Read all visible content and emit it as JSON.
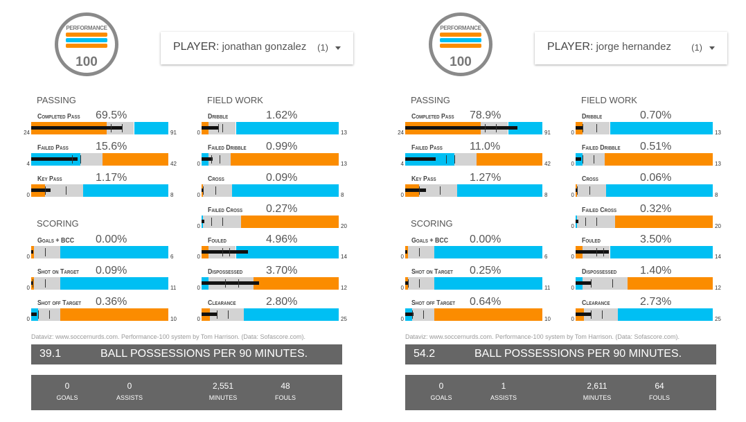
{
  "logo": {
    "top": "PERFORMANCE",
    "number": "100"
  },
  "colors": {
    "orange": "#fb8c00",
    "blue": "#00bff3",
    "gray": "#d3d3d3",
    "value": "#111111",
    "tick": "#333333"
  },
  "sections": {
    "passing": "PASSING",
    "field_work": "FIELD WORK",
    "scoring": "SCORING"
  },
  "players": [
    {
      "select": {
        "label": "PLAYER:",
        "name": "jonathan gonzalez",
        "count": "(1)"
      },
      "credit": "Dataviz: www.soccernurds.com. Performance-100 system by Tom Harrison. (Data: Sofascore.com).",
      "possessions": {
        "value": "39.1",
        "text": "BALL POSSESSIONS PER 90 MINUTES."
      },
      "totals": [
        {
          "value": "0",
          "label": "GOALS"
        },
        {
          "value": "0",
          "label": "ASSISTS"
        },
        {
          "value": "2,551",
          "label": "MINUTES"
        },
        {
          "value": "48",
          "label": "FOULS"
        }
      ],
      "metrics": [
        {
          "label": "Completed Pass",
          "pct": "69.5%",
          "min": "24",
          "max": "91",
          "bands": [
            {
              "c": "orange",
              "e": 0.55
            },
            {
              "c": "gray",
              "e": 0.75
            },
            {
              "c": "blue",
              "e": 1
            }
          ],
          "value": 0.66,
          "ticks": [
            0.58,
            0.66
          ]
        },
        {
          "label": "Failed Pass",
          "pct": "15.6%",
          "min": "4",
          "max": "42",
          "bands": [
            {
              "c": "blue",
              "e": 0.36
            },
            {
              "c": "gray",
              "e": 0.52
            },
            {
              "c": "orange",
              "e": 1
            }
          ],
          "value": 0.34,
          "ticks": [
            0.3,
            0.36
          ]
        },
        {
          "label": "Key Pass",
          "pct": "1.17%",
          "min": "0",
          "max": "8",
          "bands": [
            {
              "c": "orange",
              "e": 0.1
            },
            {
              "c": "gray",
              "e": 0.38
            },
            {
              "c": "blue",
              "e": 1
            }
          ],
          "value": 0.14,
          "ticks": [
            0.1,
            0.25
          ]
        },
        {
          "label": "Goals + BCC",
          "pct": "0.00%",
          "min": "0",
          "max": "6",
          "bands": [
            {
              "c": "orange",
              "e": 0.02
            },
            {
              "c": "gray",
              "e": 0.21
            },
            {
              "c": "blue",
              "e": 1
            }
          ],
          "value": 0.0,
          "ticks": [
            0.1
          ]
        },
        {
          "label": "Shot on Target",
          "pct": "0.09%",
          "min": "0",
          "max": "11",
          "bands": [
            {
              "c": "orange",
              "e": 0.02
            },
            {
              "c": "gray",
              "e": 0.21
            },
            {
              "c": "blue",
              "e": 1
            }
          ],
          "value": 0.01,
          "ticks": [
            0.01,
            0.1
          ]
        },
        {
          "label": "Shot off Target",
          "pct": "0.36%",
          "min": "0",
          "max": "10",
          "bands": [
            {
              "c": "blue",
              "e": 0.05
            },
            {
              "c": "gray",
              "e": 0.21
            },
            {
              "c": "orange",
              "e": 1
            }
          ],
          "value": 0.04,
          "ticks": [
            0.05,
            0.13
          ]
        },
        {
          "label": "Dribble",
          "pct": "1.62%",
          "min": "0",
          "max": "13",
          "bands": [
            {
              "c": "orange",
              "e": 0.05
            },
            {
              "c": "gray",
              "e": 0.25
            },
            {
              "c": "blue",
              "e": 1
            }
          ],
          "value": 0.12,
          "ticks": [
            0.12,
            0.15
          ]
        },
        {
          "label": "Failed Dribble",
          "pct": "0.99%",
          "min": "0",
          "max": "13",
          "bands": [
            {
              "c": "blue",
              "e": 0.05
            },
            {
              "c": "gray",
              "e": 0.21
            },
            {
              "c": "orange",
              "e": 1
            }
          ],
          "value": 0.08,
          "ticks": [
            0.07,
            0.13
          ]
        },
        {
          "label": "Cross",
          "pct": "0.09%",
          "min": "0",
          "max": "8",
          "bands": [
            {
              "c": "orange",
              "e": 0.01
            },
            {
              "c": "gray",
              "e": 0.22
            },
            {
              "c": "blue",
              "e": 1
            }
          ],
          "value": 0.01,
          "ticks": [
            0.01,
            0.1
          ]
        },
        {
          "label": "Failed Cross",
          "pct": "0.27%",
          "min": "0",
          "max": "20",
          "bands": [
            {
              "c": "blue",
              "e": 0.01
            },
            {
              "c": "gray",
              "e": 0.29
            },
            {
              "c": "orange",
              "e": 1
            }
          ],
          "value": 0.02,
          "ticks": [
            0.07,
            0.15
          ]
        },
        {
          "label": "Fouled",
          "pct": "4.96%",
          "min": "0",
          "max": "14",
          "bands": [
            {
              "c": "orange",
              "e": 0.05
            },
            {
              "c": "gray",
              "e": 0.25
            },
            {
              "c": "blue",
              "e": 1
            }
          ],
          "value": 0.34,
          "ticks": [
            0.15,
            0.2
          ]
        },
        {
          "label": "Dispossessed",
          "pct": "3.70%",
          "min": "0",
          "max": "12",
          "bands": [
            {
              "c": "blue",
              "e": 0.05
            },
            {
              "c": "gray",
              "e": 0.38
            },
            {
              "c": "orange",
              "e": 1
            }
          ],
          "value": 0.42,
          "ticks": [
            0.17,
            0.27
          ]
        },
        {
          "label": "Clearance",
          "pct": "2.80%",
          "min": "0",
          "max": "25",
          "bands": [
            {
              "c": "orange",
              "e": 0.06
            },
            {
              "c": "gray",
              "e": 0.31
            },
            {
              "c": "blue",
              "e": 1
            }
          ],
          "value": 0.11,
          "ticks": [
            0.11,
            0.19
          ]
        }
      ]
    },
    {
      "select": {
        "label": "PLAYER:",
        "name": "jorge hernandez",
        "count": "(1)"
      },
      "credit": "Dataviz: www.soccernurds.com. Performance-100 system by Tom Harrison. (Data: Sofascore.com).",
      "possessions": {
        "value": "54.2",
        "text": "BALL POSSESSIONS PER 90 MINUTES."
      },
      "totals": [
        {
          "value": "0",
          "label": "GOALS"
        },
        {
          "value": "1",
          "label": "ASSISTS"
        },
        {
          "value": "2,611",
          "label": "MINUTES"
        },
        {
          "value": "64",
          "label": "FOULS"
        }
      ],
      "metrics": [
        {
          "label": "Completed Pass",
          "pct": "78.9%",
          "min": "24",
          "max": "91",
          "bands": [
            {
              "c": "orange",
              "e": 0.55
            },
            {
              "c": "gray",
              "e": 0.75
            },
            {
              "c": "blue",
              "e": 1
            }
          ],
          "value": 0.82,
          "ticks": [
            0.58,
            0.66
          ]
        },
        {
          "label": "Failed Pass",
          "pct": "11.0%",
          "min": "4",
          "max": "42",
          "bands": [
            {
              "c": "blue",
              "e": 0.36
            },
            {
              "c": "gray",
              "e": 0.52
            },
            {
              "c": "orange",
              "e": 1
            }
          ],
          "value": 0.22,
          "ticks": [
            0.3,
            0.36
          ]
        },
        {
          "label": "Key Pass",
          "pct": "1.27%",
          "min": "0",
          "max": "8",
          "bands": [
            {
              "c": "orange",
              "e": 0.1
            },
            {
              "c": "gray",
              "e": 0.38
            },
            {
              "c": "blue",
              "e": 1
            }
          ],
          "value": 0.15,
          "ticks": [
            0.1,
            0.25
          ]
        },
        {
          "label": "Goals + BCC",
          "pct": "0.00%",
          "min": "0",
          "max": "6",
          "bands": [
            {
              "c": "orange",
              "e": 0.02
            },
            {
              "c": "gray",
              "e": 0.21
            },
            {
              "c": "blue",
              "e": 1
            }
          ],
          "value": 0.0,
          "ticks": [
            0.1
          ]
        },
        {
          "label": "Shot on Target",
          "pct": "0.25%",
          "min": "0",
          "max": "11",
          "bands": [
            {
              "c": "orange",
              "e": 0.02
            },
            {
              "c": "gray",
              "e": 0.21
            },
            {
              "c": "blue",
              "e": 1
            }
          ],
          "value": 0.02,
          "ticks": [
            0.02,
            0.1
          ]
        },
        {
          "label": "Shot off Target",
          "pct": "0.64%",
          "min": "0",
          "max": "10",
          "bands": [
            {
              "c": "blue",
              "e": 0.05
            },
            {
              "c": "gray",
              "e": 0.21
            },
            {
              "c": "orange",
              "e": 1
            }
          ],
          "value": 0.06,
          "ticks": [
            0.05,
            0.13
          ]
        },
        {
          "label": "Dribble",
          "pct": "0.70%",
          "min": "0",
          "max": "13",
          "bands": [
            {
              "c": "orange",
              "e": 0.05
            },
            {
              "c": "gray",
              "e": 0.25
            },
            {
              "c": "blue",
              "e": 1
            }
          ],
          "value": 0.05,
          "ticks": [
            0.05,
            0.15
          ]
        },
        {
          "label": "Failed Dribble",
          "pct": "0.51%",
          "min": "0",
          "max": "13",
          "bands": [
            {
              "c": "blue",
              "e": 0.05
            },
            {
              "c": "gray",
              "e": 0.21
            },
            {
              "c": "orange",
              "e": 1
            }
          ],
          "value": 0.04,
          "ticks": [
            0.05,
            0.13
          ]
        },
        {
          "label": "Cross",
          "pct": "0.06%",
          "min": "0",
          "max": "8",
          "bands": [
            {
              "c": "orange",
              "e": 0.01
            },
            {
              "c": "gray",
              "e": 0.22
            },
            {
              "c": "blue",
              "e": 1
            }
          ],
          "value": 0.01,
          "ticks": [
            0.01,
            0.1
          ]
        },
        {
          "label": "Failed Cross",
          "pct": "0.32%",
          "min": "0",
          "max": "20",
          "bands": [
            {
              "c": "blue",
              "e": 0.01
            },
            {
              "c": "gray",
              "e": 0.29
            },
            {
              "c": "orange",
              "e": 1
            }
          ],
          "value": 0.02,
          "ticks": [
            0.07,
            0.15
          ]
        },
        {
          "label": "Fouled",
          "pct": "3.50%",
          "min": "0",
          "max": "14",
          "bands": [
            {
              "c": "orange",
              "e": 0.05
            },
            {
              "c": "gray",
              "e": 0.25
            },
            {
              "c": "blue",
              "e": 1
            }
          ],
          "value": 0.24,
          "ticks": [
            0.15,
            0.2
          ]
        },
        {
          "label": "Dispossessed",
          "pct": "1.40%",
          "min": "0",
          "max": "12",
          "bands": [
            {
              "c": "blue",
              "e": 0.05
            },
            {
              "c": "gray",
              "e": 0.38
            },
            {
              "c": "orange",
              "e": 1
            }
          ],
          "value": 0.11,
          "ticks": [
            0.11,
            0.27
          ]
        },
        {
          "label": "Clearance",
          "pct": "2.73%",
          "min": "0",
          "max": "25",
          "bands": [
            {
              "c": "orange",
              "e": 0.06
            },
            {
              "c": "gray",
              "e": 0.31
            },
            {
              "c": "blue",
              "e": 1
            }
          ],
          "value": 0.11,
          "ticks": [
            0.11,
            0.19
          ]
        }
      ]
    }
  ],
  "chart_data": [
    {
      "type": "bullet",
      "player": "jonathan gonzalez",
      "metrics": [
        {
          "name": "Completed Pass",
          "value_pct": 69.5,
          "min": 24,
          "max": 91
        },
        {
          "name": "Failed Pass",
          "value_pct": 15.6,
          "min": 4,
          "max": 42
        },
        {
          "name": "Key Pass",
          "value_pct": 1.17,
          "min": 0,
          "max": 8
        },
        {
          "name": "Goals + BCC",
          "value_pct": 0.0,
          "min": 0,
          "max": 6
        },
        {
          "name": "Shot on Target",
          "value_pct": 0.09,
          "min": 0,
          "max": 11
        },
        {
          "name": "Shot off Target",
          "value_pct": 0.36,
          "min": 0,
          "max": 10
        },
        {
          "name": "Dribble",
          "value_pct": 1.62,
          "min": 0,
          "max": 13
        },
        {
          "name": "Failed Dribble",
          "value_pct": 0.99,
          "min": 0,
          "max": 13
        },
        {
          "name": "Cross",
          "value_pct": 0.09,
          "min": 0,
          "max": 8
        },
        {
          "name": "Failed Cross",
          "value_pct": 0.27,
          "min": 0,
          "max": 20
        },
        {
          "name": "Fouled",
          "value_pct": 4.96,
          "min": 0,
          "max": 14
        },
        {
          "name": "Dispossessed",
          "value_pct": 3.7,
          "min": 0,
          "max": 12
        },
        {
          "name": "Clearance",
          "value_pct": 2.8,
          "min": 0,
          "max": 25
        }
      ],
      "possessions_per_90": 39.1,
      "goals": 0,
      "assists": 0,
      "minutes": 2551,
      "fouls": 48
    },
    {
      "type": "bullet",
      "player": "jorge hernandez",
      "metrics": [
        {
          "name": "Completed Pass",
          "value_pct": 78.9,
          "min": 24,
          "max": 91
        },
        {
          "name": "Failed Pass",
          "value_pct": 11.0,
          "min": 4,
          "max": 42
        },
        {
          "name": "Key Pass",
          "value_pct": 1.27,
          "min": 0,
          "max": 8
        },
        {
          "name": "Goals + BCC",
          "value_pct": 0.0,
          "min": 0,
          "max": 6
        },
        {
          "name": "Shot on Target",
          "value_pct": 0.25,
          "min": 0,
          "max": 11
        },
        {
          "name": "Shot off Target",
          "value_pct": 0.64,
          "min": 0,
          "max": 10
        },
        {
          "name": "Dribble",
          "value_pct": 0.7,
          "min": 0,
          "max": 13
        },
        {
          "name": "Failed Dribble",
          "value_pct": 0.51,
          "min": 0,
          "max": 13
        },
        {
          "name": "Cross",
          "value_pct": 0.06,
          "min": 0,
          "max": 8
        },
        {
          "name": "Failed Cross",
          "value_pct": 0.32,
          "min": 0,
          "max": 20
        },
        {
          "name": "Fouled",
          "value_pct": 3.5,
          "min": 0,
          "max": 14
        },
        {
          "name": "Dispossessed",
          "value_pct": 1.4,
          "min": 0,
          "max": 12
        },
        {
          "name": "Clearance",
          "value_pct": 2.73,
          "min": 0,
          "max": 25
        }
      ],
      "possessions_per_90": 54.2,
      "goals": 0,
      "assists": 1,
      "minutes": 2611,
      "fouls": 64
    }
  ]
}
